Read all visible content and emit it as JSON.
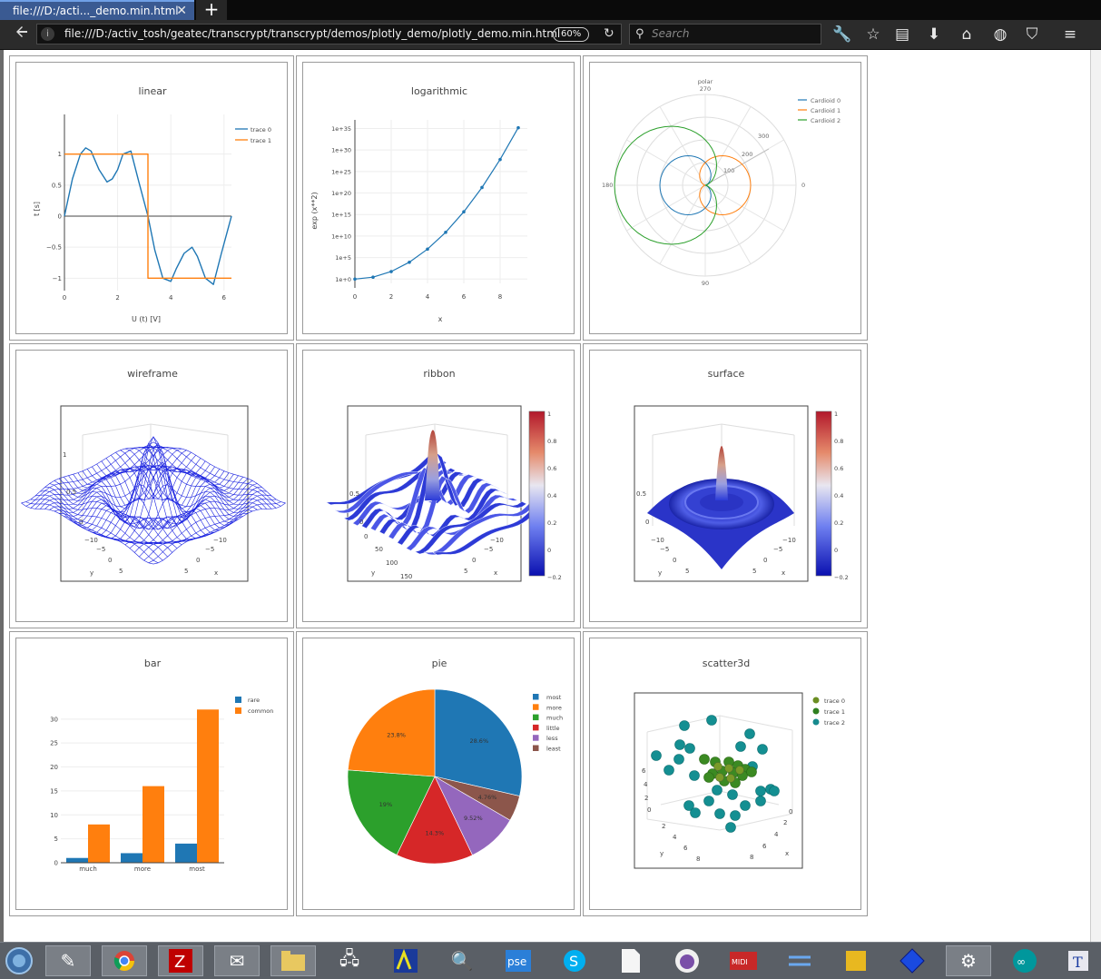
{
  "tab": {
    "title": "file:///D:/acti..._demo.min.html",
    "close": "✕",
    "new": "+"
  },
  "nav": {
    "url": "file:///D:/activ_tosh/geatec/transcrypt/transcrypt/demos/plotly_demo/plotly_demo.min.html",
    "zoom": "60%",
    "search_placeholder": "Search",
    "icons": [
      "back-arrow-icon",
      "wrench-icon",
      "star-icon",
      "reader-icon",
      "download-icon",
      "home-icon",
      "globe-icon",
      "pocket-icon",
      "menu-icon"
    ]
  },
  "colors": {
    "blue": "#1f77b4",
    "orange": "#ff7f0e",
    "green": "#2ca02c",
    "red": "#d62728",
    "purple": "#9467bd",
    "brown": "#8c564b",
    "teal": "#17a2a8",
    "olive": "#6b8e23"
  },
  "plots": {
    "linear": {
      "title": "linear",
      "xlabel": "U (t) [V]",
      "ylabel": "t [s]",
      "xticks": [
        "0",
        "2",
        "4",
        "6"
      ],
      "yticks": [
        "1",
        "0.5",
        "0",
        "−0.5",
        "−1"
      ],
      "legend": [
        "trace 0",
        "trace 1"
      ]
    },
    "logarithmic": {
      "title": "logarithmic",
      "xlabel": "x",
      "ylabel": "exp (x**2)",
      "xticks": [
        "0",
        "2",
        "4",
        "6",
        "8"
      ],
      "yticks": [
        "1e+35",
        "1e+30",
        "1e+25",
        "1e+20",
        "1e+15",
        "1e+10",
        "1e+5",
        "1e+0"
      ]
    },
    "polar": {
      "title": "polar",
      "angles": [
        "270",
        "0",
        "90",
        "180"
      ],
      "radial": [
        "100",
        "200",
        "300"
      ],
      "legend": [
        "Cardioid 0",
        "Cardioid 1",
        "Cardioid 2"
      ]
    },
    "wireframe": {
      "title": "wireframe",
      "zticks": [
        "1",
        "0.5",
        "0"
      ],
      "xticks": [
        "−10",
        "−5",
        "0",
        "5"
      ],
      "yticks": [
        "−10",
        "−5",
        "0",
        "5"
      ],
      "xaxis": "x",
      "yaxis": "y"
    },
    "ribbon": {
      "title": "ribbon",
      "zticks": [
        "0.5",
        "0"
      ],
      "yticks": [
        "0",
        "50",
        "100",
        "150"
      ],
      "xticks": [
        "−10",
        "−5",
        "0",
        "5"
      ],
      "xaxis": "x",
      "yaxis": "y",
      "colorbar": [
        "1",
        "0.8",
        "0.6",
        "0.4",
        "0.2",
        "0",
        "−0.2"
      ]
    },
    "surface": {
      "title": "surface",
      "zticks": [
        "0.5",
        "0"
      ],
      "xticks": [
        "−10",
        "−5",
        "0",
        "5"
      ],
      "yticks": [
        "−10",
        "−5",
        "0",
        "5"
      ],
      "xaxis": "x",
      "yaxis": "y",
      "colorbar": [
        "1",
        "0.8",
        "0.6",
        "0.4",
        "0.2",
        "0",
        "−0.2"
      ]
    },
    "bar": {
      "title": "bar",
      "yticks": [
        "30",
        "25",
        "20",
        "15",
        "10",
        "5",
        "0"
      ],
      "legend": [
        "rare",
        "common"
      ]
    },
    "pie": {
      "title": "pie",
      "legend": [
        "most",
        "more",
        "much",
        "little",
        "less",
        "least"
      ],
      "labels": [
        "28.6%",
        "4.76%",
        "9.52%",
        "14.3%",
        "19%",
        "23.8%"
      ]
    },
    "scatter3d": {
      "title": "scatter3d",
      "legend": [
        "trace 0",
        "trace 1",
        "trace 2"
      ],
      "zticks": [
        "6",
        "4",
        "2",
        "0"
      ],
      "xticks": [
        "0",
        "2",
        "4",
        "6",
        "8"
      ],
      "yticks": [
        "2",
        "4",
        "6",
        "8"
      ],
      "xaxis": "x",
      "yaxis": "y"
    }
  },
  "chart_data": [
    {
      "type": "line",
      "title": "linear",
      "xlabel": "U (t) [V]",
      "ylabel": "t [s]",
      "series": [
        {
          "name": "trace 0",
          "x": [
            0,
            0.3,
            0.6,
            0.8,
            1.0,
            1.3,
            1.6,
            1.8,
            2.0,
            2.2,
            2.5,
            2.8,
            3.14,
            3.4,
            3.7,
            4.0,
            4.2,
            4.5,
            4.8,
            5.0,
            5.3,
            5.6,
            5.9,
            6.28
          ],
          "y": [
            0,
            0.6,
            1.0,
            1.1,
            1.05,
            0.75,
            0.55,
            0.6,
            0.75,
            1.0,
            1.05,
            0.55,
            0,
            -0.55,
            -1.0,
            -1.05,
            -0.85,
            -0.6,
            -0.5,
            -0.65,
            -1.0,
            -1.1,
            -0.6,
            0
          ]
        },
        {
          "name": "trace 1",
          "x": [
            0,
            3.14,
            3.14,
            6.28
          ],
          "y": [
            1,
            1,
            -1,
            -1
          ]
        }
      ],
      "xlim": [
        0,
        6.28
      ],
      "ylim": [
        -1.2,
        1.2
      ]
    },
    {
      "type": "line",
      "title": "logarithmic",
      "xlabel": "x",
      "ylabel": "exp (x**2)",
      "series": [
        {
          "x": [
            0,
            1,
            2,
            3,
            4,
            5,
            6,
            7,
            8,
            9
          ],
          "log10y": [
            0,
            0.43,
            1.74,
            3.91,
            6.95,
            10.86,
            15.63,
            21.28,
            27.79,
            35.18
          ]
        }
      ],
      "xlim": [
        0,
        9.5
      ],
      "ylim_log10": [
        -1,
        37
      ]
    },
    {
      "type": "polar",
      "title": "polar",
      "series": [
        {
          "name": "Cardioid 0",
          "scale": 100
        },
        {
          "name": "Cardioid 1",
          "scale": 100
        },
        {
          "name": "Cardioid 2",
          "scale": 200
        }
      ]
    },
    {
      "type": "bar",
      "title": "bar",
      "categories": [
        "much",
        "more",
        "most"
      ],
      "series": [
        {
          "name": "rare",
          "values": [
            1,
            2,
            4
          ]
        },
        {
          "name": "common",
          "values": [
            8,
            16,
            32
          ]
        }
      ],
      "ylim": [
        0,
        33
      ]
    },
    {
      "type": "pie",
      "title": "pie",
      "categories": [
        "most",
        "more",
        "much",
        "little",
        "less",
        "least"
      ],
      "values": [
        23.8,
        28.6,
        19,
        14.3,
        9.52,
        4.76
      ],
      "order_clockwise_from_top": [
        "more",
        "least",
        "less",
        "little",
        "much",
        "most"
      ],
      "order_values": [
        28.6,
        4.76,
        9.52,
        14.3,
        19,
        23.8
      ]
    }
  ]
}
